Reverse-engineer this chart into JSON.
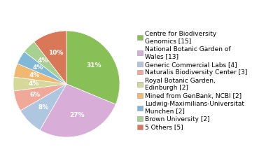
{
  "labels": [
    "Centre for Biodiversity\nGenomics [15]",
    "National Botanic Garden of\nWales [13]",
    "Generic Commercial Labs [4]",
    "Naturalis Biodiversity Center [3]",
    "Royal Botanic Garden,\nEdinburgh [2]",
    "Mined from GenBank, NCBI [2]",
    "Ludwig-Maximilians-Universitat\nMunchen [2]",
    "Brown University [2]",
    "5 Others [5]"
  ],
  "values": [
    15,
    13,
    4,
    3,
    2,
    2,
    2,
    2,
    5
  ],
  "colors": [
    "#88c057",
    "#d8aed8",
    "#aec6e0",
    "#f0a898",
    "#d4d898",
    "#f0b870",
    "#80b8d8",
    "#a8d090",
    "#d87858"
  ],
  "pct_labels": [
    "31%",
    "27%",
    "8%",
    "6%",
    "4%",
    "4%",
    "4%",
    "4%",
    "10%"
  ],
  "font_size": 6.5,
  "pct_font_size": 6.5
}
